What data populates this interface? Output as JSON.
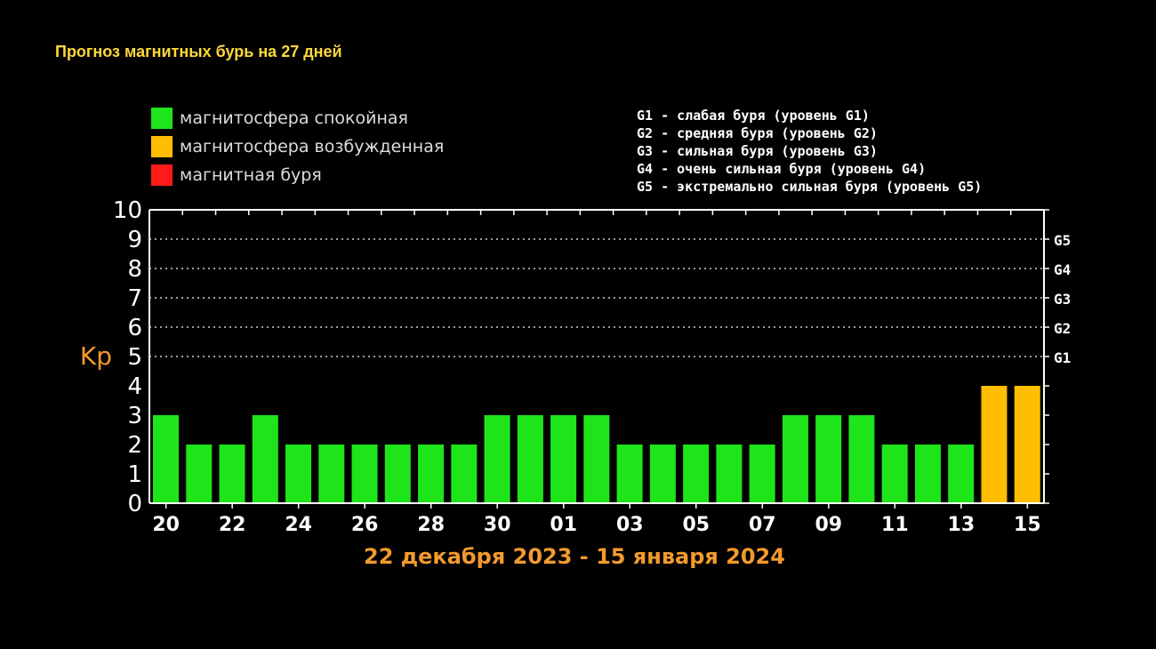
{
  "title": "Прогноз магнитных бурь на 27 дней",
  "legend": [
    {
      "label": "магнитосфера спокойная",
      "color": "#1ee51a"
    },
    {
      "label": "магнитосфера возбужденная",
      "color": "#ffbf00"
    },
    {
      "label": "магнитная буря",
      "color": "#ff1a1a"
    }
  ],
  "g_legend": [
    "G1 - слабая буря (уровень G1)",
    "G2 - средняя буря (уровень G2)",
    "G3 - сильная буря (уровень G3)",
    "G4 - очень сильная буря (уровень G4)",
    "G5 - экстремально сильная буря (уровень G5)"
  ],
  "date_range": "22 декабря 2023 - 15 января 2024",
  "chart_data": {
    "type": "bar",
    "ylabel": "Kp",
    "ylim": [
      0,
      10
    ],
    "y_ticks": [
      "0",
      "1",
      "2",
      "3",
      "4",
      "5",
      "6",
      "7",
      "8",
      "9",
      "10"
    ],
    "g_levels": [
      {
        "label": "G1",
        "kp": 5
      },
      {
        "label": "G2",
        "kp": 6
      },
      {
        "label": "G3",
        "kp": 7
      },
      {
        "label": "G4",
        "kp": 8
      },
      {
        "label": "G5",
        "kp": 9
      }
    ],
    "gridlines": [
      5,
      6,
      7,
      8,
      9
    ],
    "x_tick_labels": [
      "20",
      "22",
      "24",
      "26",
      "28",
      "30",
      "01",
      "03",
      "05",
      "07",
      "09",
      "11",
      "13",
      "15"
    ],
    "values": [
      3,
      2,
      2,
      3,
      2,
      2,
      2,
      2,
      2,
      2,
      3,
      3,
      3,
      3,
      2,
      2,
      2,
      2,
      2,
      3,
      3,
      3,
      2,
      2,
      2,
      4,
      4
    ],
    "colors": {
      "calm": "#1ee51a",
      "excited": "#ffbf00",
      "storm": "#ff1a1a"
    },
    "axis_color": "#ffffff",
    "grid": true
  }
}
